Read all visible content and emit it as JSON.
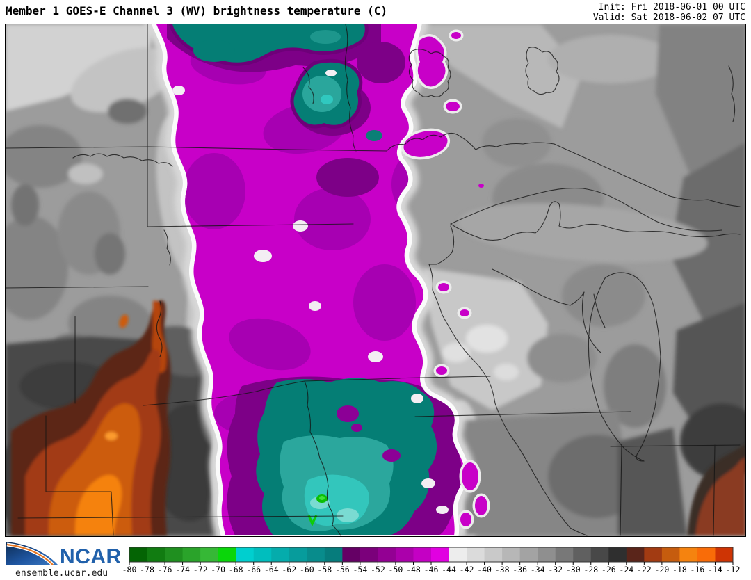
{
  "header": {
    "title": "Member 1 GOES-E Channel 3 (WV) brightness temperature (C)",
    "init_line": "Init: Fri 2018-06-01 00 UTC",
    "valid_line": "Valid: Sat 2018-06-02 07 UTC"
  },
  "footer": {
    "logo_text": "NCAR",
    "site": "ensemble.ucar.edu"
  },
  "colorbar": {
    "title": "brightness temperature (C)",
    "min": -80,
    "max": -12,
    "step": 2,
    "labels": [
      "-80",
      "-78",
      "-76",
      "-74",
      "-72",
      "-70",
      "-68",
      "-66",
      "-64",
      "-62",
      "-60",
      "-58",
      "-56",
      "-54",
      "-52",
      "-50",
      "-48",
      "-46",
      "-44",
      "-42",
      "-40",
      "-38",
      "-36",
      "-34",
      "-32",
      "-30",
      "-28",
      "-26",
      "-24",
      "-22",
      "-20",
      "-18",
      "-16",
      "-14",
      "-12"
    ],
    "segment_colors": [
      "#046404",
      "#117c11",
      "#1f8f1f",
      "#2aa32a",
      "#36b836",
      "#0ad60a",
      "#00cfcf",
      "#00bebe",
      "#05acac",
      "#079c9c",
      "#088c8c",
      "#067c7c",
      "#650065",
      "#7b007b",
      "#930093",
      "#ab00ab",
      "#c400c4",
      "#e100e1",
      "#ededed",
      "#dbdbdb",
      "#c9c9c9",
      "#b7b7b7",
      "#a3a3a3",
      "#8f8f8f",
      "#787878",
      "#606060",
      "#484848",
      "#2f2f2f",
      "#5a251a",
      "#a23b12",
      "#c65c0e",
      "#f5830f",
      "#f96c08",
      "#ce3404"
    ],
    "accent_magenta": "#c800c8",
    "accent_teal": "#057e75",
    "accent_orange": "#f5820e"
  }
}
